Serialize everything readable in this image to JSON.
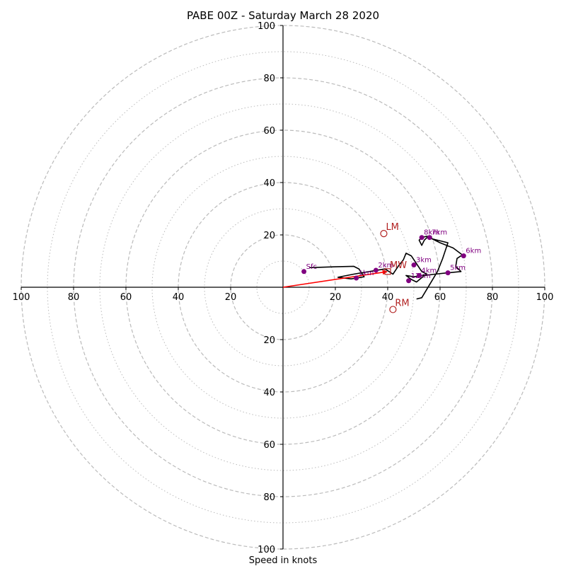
{
  "chart_data": {
    "type": "hodograph",
    "title": "PABE 00Z - Saturday March 28 2020",
    "xlabel": "Speed in knots",
    "axis_range": [
      -100,
      100
    ],
    "tick_labels": [
      "100",
      "80",
      "60",
      "40",
      "20",
      "20",
      "40",
      "60",
      "80",
      "100"
    ],
    "tick_values": [
      -100,
      -80,
      -60,
      -40,
      -20,
      20,
      40,
      60,
      80,
      100
    ],
    "rings_dashed": [
      20,
      40,
      60,
      80,
      100
    ],
    "rings_dotted": [
      10,
      30,
      50,
      70,
      90
    ],
    "colors": {
      "trace": "#000000",
      "points": "#800080",
      "storm_motion": "#b22222",
      "mean_wind_vector": "#ff0000",
      "rings": "#bbbbbb"
    },
    "trace": [
      [
        10,
        7.5
      ],
      [
        20,
        7.8
      ],
      [
        27,
        8
      ],
      [
        29,
        7
      ],
      [
        31,
        4
      ],
      [
        28,
        3.5
      ],
      [
        26,
        3.2
      ],
      [
        21,
        3.8
      ],
      [
        27,
        5
      ],
      [
        33,
        6
      ],
      [
        36,
        6.5
      ],
      [
        39,
        7
      ],
      [
        42,
        5
      ],
      [
        44,
        8
      ],
      [
        46,
        10.5
      ],
      [
        47,
        13
      ],
      [
        49,
        12
      ],
      [
        51,
        9
      ],
      [
        53,
        6
      ],
      [
        55,
        5
      ],
      [
        53,
        4.5
      ],
      [
        50,
        4
      ],
      [
        47,
        4.5
      ],
      [
        49,
        3
      ],
      [
        51,
        2
      ],
      [
        54,
        4.5
      ],
      [
        58,
        5
      ],
      [
        63,
        5.5
      ],
      [
        68,
        6
      ],
      [
        66,
        8
      ],
      [
        66.5,
        11
      ],
      [
        68,
        12
      ],
      [
        69,
        12
      ],
      [
        65,
        15
      ],
      [
        60,
        17
      ],
      [
        57,
        18.5
      ],
      [
        55,
        19
      ],
      [
        54,
        18
      ],
      [
        53,
        16
      ],
      [
        52,
        18
      ],
      [
        53,
        19
      ],
      [
        55,
        19.5
      ],
      [
        57,
        18.5
      ],
      [
        63,
        17
      ],
      [
        61,
        11
      ],
      [
        59,
        6
      ],
      [
        56,
        1
      ],
      [
        53,
        -4
      ],
      [
        51,
        -4.5
      ]
    ],
    "points": [
      {
        "label": "Sfc",
        "u": 8,
        "v": 6
      },
      {
        "label": "1km",
        "u": 28,
        "v": 3.5
      },
      {
        "label": "2km",
        "u": 35.5,
        "v": 6.5
      },
      {
        "label": "3km",
        "u": 50,
        "v": 8.5
      },
      {
        "label": "4km",
        "u": 52,
        "v": 4.5
      },
      {
        "label": "5km",
        "u": 63,
        "v": 5.5
      },
      {
        "label": "6km",
        "u": 69,
        "v": 12
      },
      {
        "label": "7km",
        "u": 56,
        "v": 19
      },
      {
        "label": "8km",
        "u": 53,
        "v": 19
      },
      {
        "label": "12km",
        "u": 48,
        "v": 2.5
      }
    ],
    "storm_motion": [
      {
        "label": "LM",
        "u": 38.5,
        "v": 20.5
      },
      {
        "label": "RM",
        "u": 42,
        "v": -8.5
      },
      {
        "label": "MW",
        "u": 40,
        "v": 6
      }
    ],
    "mean_wind_vector": {
      "u": 40,
      "v": 6
    }
  }
}
